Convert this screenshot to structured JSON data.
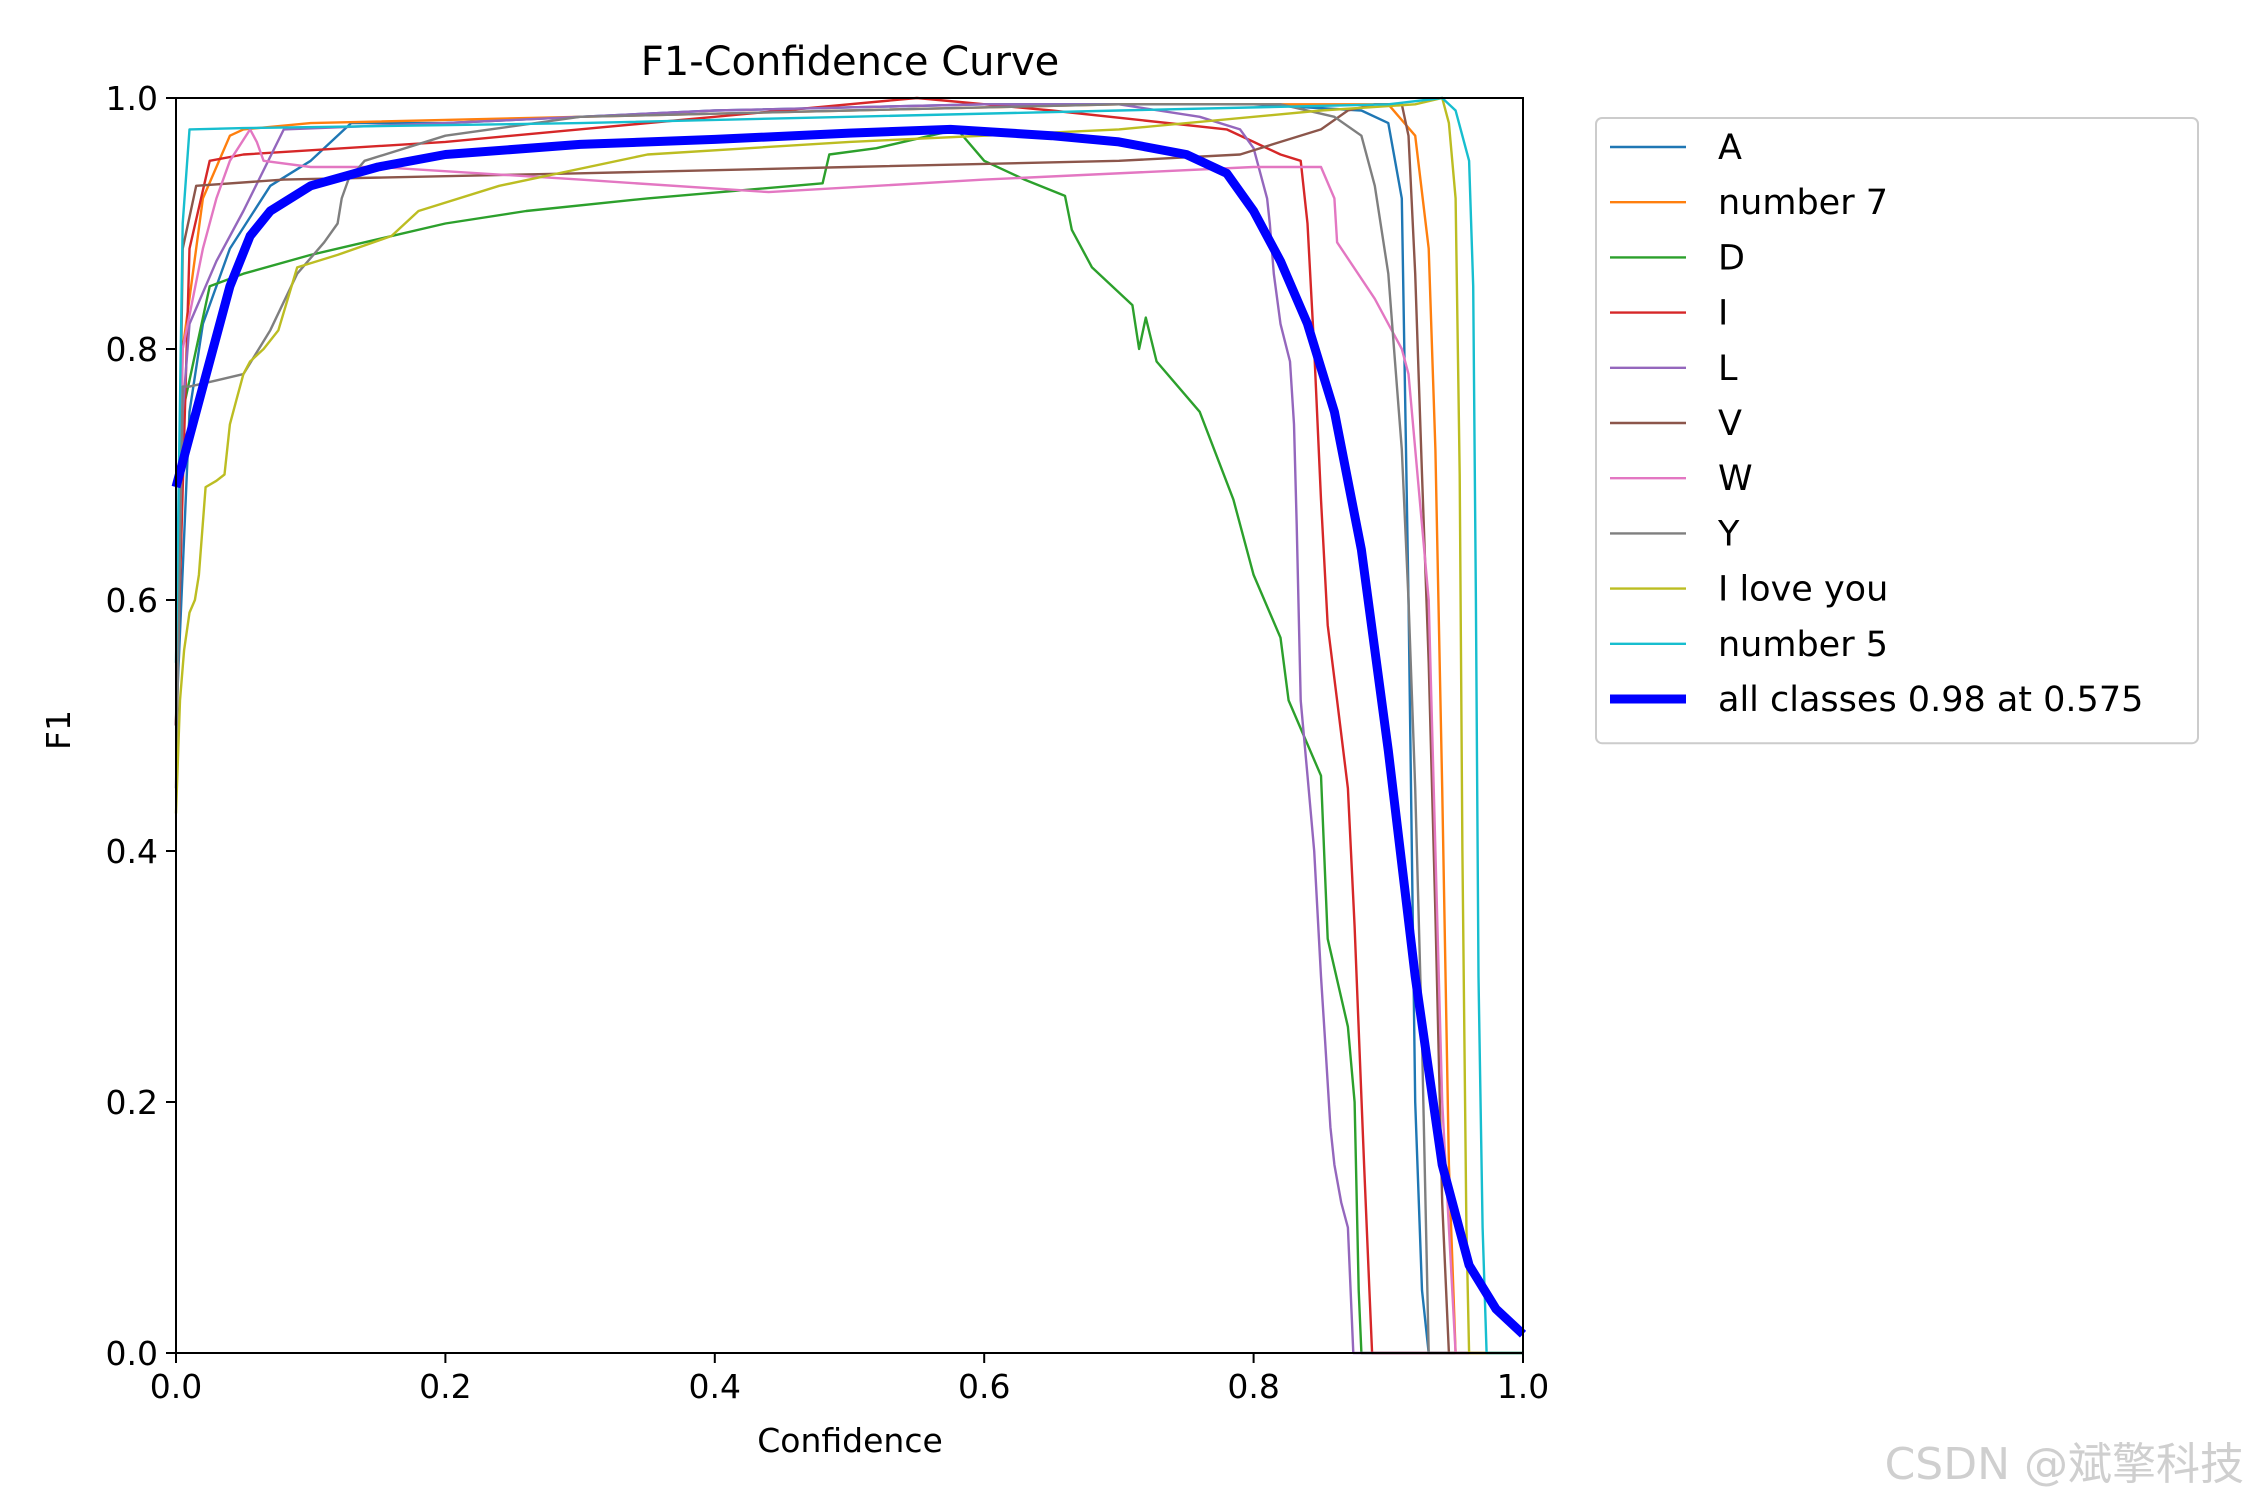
{
  "chart_data": {
    "type": "line",
    "title": "F1-Confidence Curve",
    "xlabel": "Confidence",
    "ylabel": "F1",
    "xlim": [
      0,
      1
    ],
    "ylim": [
      0,
      1
    ],
    "xticks": [
      "0.0",
      "0.2",
      "0.4",
      "0.6",
      "0.8",
      "1.0"
    ],
    "yticks": [
      "0.0",
      "0.2",
      "0.4",
      "0.6",
      "0.8",
      "1.0"
    ],
    "grid": false,
    "legend_position": "outside-right-top",
    "series": [
      {
        "name": "A",
        "color": "#1f77b4",
        "x": [
          0,
          0.01,
          0.02,
          0.04,
          0.07,
          0.1,
          0.13,
          0.2,
          0.4,
          0.6,
          0.8,
          0.88,
          0.9,
          0.91,
          0.915,
          0.92,
          0.925,
          0.93,
          1.0
        ],
        "y": [
          0.5,
          0.75,
          0.82,
          0.88,
          0.93,
          0.95,
          0.98,
          0.98,
          0.99,
          0.995,
          0.995,
          0.99,
          0.98,
          0.92,
          0.6,
          0.2,
          0.05,
          0,
          0
        ]
      },
      {
        "name": "number 7",
        "color": "#ff7f0e",
        "x": [
          0,
          0.005,
          0.02,
          0.04,
          0.05,
          0.1,
          0.3,
          0.5,
          0.7,
          0.9,
          0.92,
          0.93,
          0.935,
          0.94,
          0.945,
          0.95,
          1.0
        ],
        "y": [
          0.5,
          0.8,
          0.92,
          0.97,
          0.975,
          0.98,
          0.985,
          0.99,
          0.995,
          0.995,
          0.97,
          0.88,
          0.72,
          0.45,
          0.15,
          0,
          0
        ]
      },
      {
        "name": "D",
        "color": "#2ca02c",
        "x": [
          0,
          0.005,
          0.025,
          0.05,
          0.1,
          0.2,
          0.26,
          0.35,
          0.48,
          0.485,
          0.52,
          0.58,
          0.6,
          0.63,
          0.66,
          0.665,
          0.68,
          0.71,
          0.715,
          0.72,
          0.728,
          0.76,
          0.785,
          0.8,
          0.82,
          0.826,
          0.85,
          0.855,
          0.87,
          0.875,
          0.878,
          0.88,
          1.0
        ],
        "y": [
          0.5,
          0.75,
          0.85,
          0.86,
          0.875,
          0.9,
          0.91,
          0.92,
          0.932,
          0.955,
          0.96,
          0.975,
          0.95,
          0.935,
          0.922,
          0.895,
          0.865,
          0.835,
          0.8,
          0.825,
          0.79,
          0.75,
          0.68,
          0.62,
          0.57,
          0.52,
          0.46,
          0.33,
          0.26,
          0.2,
          0.05,
          0,
          0
        ]
      },
      {
        "name": "I",
        "color": "#d62728",
        "x": [
          0,
          0.01,
          0.025,
          0.05,
          0.2,
          0.4,
          0.55,
          0.65,
          0.78,
          0.8,
          0.82,
          0.835,
          0.84,
          0.845,
          0.85,
          0.855,
          0.862,
          0.87,
          0.875,
          0.882,
          0.886,
          0.888,
          1.0
        ],
        "y": [
          0.5,
          0.88,
          0.95,
          0.955,
          0.965,
          0.985,
          1.0,
          0.99,
          0.975,
          0.965,
          0.955,
          0.95,
          0.9,
          0.8,
          0.68,
          0.58,
          0.52,
          0.45,
          0.34,
          0.15,
          0.05,
          0,
          0
        ]
      },
      {
        "name": "L",
        "color": "#9467bd",
        "x": [
          0,
          0.005,
          0.01,
          0.03,
          0.05,
          0.08,
          0.2,
          0.4,
          0.6,
          0.7,
          0.76,
          0.79,
          0.8,
          0.81,
          0.812,
          0.815,
          0.82,
          0.827,
          0.83,
          0.832,
          0.835,
          0.84,
          0.845,
          0.85,
          0.853,
          0.857,
          0.86,
          0.865,
          0.87,
          0.872,
          0.874,
          1.0
        ],
        "y": [
          0.5,
          0.75,
          0.82,
          0.87,
          0.91,
          0.975,
          0.98,
          0.99,
          0.995,
          0.995,
          0.985,
          0.975,
          0.96,
          0.92,
          0.9,
          0.86,
          0.82,
          0.79,
          0.74,
          0.66,
          0.52,
          0.46,
          0.4,
          0.3,
          0.25,
          0.18,
          0.15,
          0.12,
          0.1,
          0.05,
          0,
          0
        ]
      },
      {
        "name": "V",
        "color": "#8c564b",
        "x": [
          0,
          0.005,
          0.015,
          0.08,
          0.3,
          0.5,
          0.7,
          0.79,
          0.82,
          0.85,
          0.87,
          0.89,
          0.91,
          0.915,
          0.92,
          0.925,
          0.93,
          0.935,
          0.94,
          0.945,
          1.0
        ],
        "y": [
          0.5,
          0.88,
          0.93,
          0.935,
          0.94,
          0.945,
          0.95,
          0.955,
          0.965,
          0.975,
          0.99,
          0.995,
          0.995,
          0.97,
          0.86,
          0.7,
          0.55,
          0.35,
          0.12,
          0,
          0
        ]
      },
      {
        "name": "W",
        "color": "#e377c2",
        "x": [
          0,
          0.005,
          0.02,
          0.03,
          0.04,
          0.055,
          0.06,
          0.065,
          0.1,
          0.15,
          0.3,
          0.44,
          0.6,
          0.8,
          0.85,
          0.86,
          0.862,
          0.89,
          0.9,
          0.91,
          0.915,
          0.93,
          0.935,
          0.94,
          0.95,
          1.0
        ],
        "y": [
          0.5,
          0.8,
          0.88,
          0.92,
          0.95,
          0.975,
          0.965,
          0.95,
          0.945,
          0.945,
          0.935,
          0.925,
          0.935,
          0.945,
          0.945,
          0.92,
          0.885,
          0.84,
          0.82,
          0.8,
          0.78,
          0.6,
          0.4,
          0.2,
          0,
          0
        ]
      },
      {
        "name": "Y",
        "color": "#7f7f7f",
        "x": [
          0,
          0.005,
          0.01,
          0.03,
          0.05,
          0.07,
          0.09,
          0.11,
          0.12,
          0.123,
          0.128,
          0.14,
          0.2,
          0.3,
          0.5,
          0.7,
          0.82,
          0.86,
          0.88,
          0.89,
          0.9,
          0.905,
          0.91,
          0.915,
          0.92,
          0.925,
          0.93,
          1.0
        ],
        "y": [
          0.45,
          0.77,
          0.77,
          0.775,
          0.78,
          0.815,
          0.86,
          0.885,
          0.9,
          0.92,
          0.935,
          0.95,
          0.97,
          0.985,
          0.99,
          0.995,
          0.995,
          0.985,
          0.97,
          0.93,
          0.86,
          0.79,
          0.72,
          0.6,
          0.45,
          0.25,
          0,
          0
        ]
      },
      {
        "name": "I love you",
        "color": "#bcbd22",
        "x": [
          0,
          0.003,
          0.006,
          0.01,
          0.014,
          0.017,
          0.022,
          0.03,
          0.036,
          0.04,
          0.045,
          0.05,
          0.055,
          0.065,
          0.076,
          0.09,
          0.12,
          0.16,
          0.18,
          0.24,
          0.35,
          0.5,
          0.7,
          0.85,
          0.92,
          0.94,
          0.945,
          0.95,
          0.953,
          0.955,
          0.958,
          0.96,
          1.0
        ],
        "y": [
          0.43,
          0.52,
          0.56,
          0.59,
          0.6,
          0.62,
          0.69,
          0.695,
          0.7,
          0.74,
          0.76,
          0.78,
          0.79,
          0.8,
          0.815,
          0.865,
          0.875,
          0.89,
          0.91,
          0.93,
          0.955,
          0.965,
          0.975,
          0.99,
          0.995,
          1.0,
          0.98,
          0.92,
          0.7,
          0.4,
          0.1,
          0,
          0
        ]
      },
      {
        "name": "number 5",
        "color": "#17becf",
        "x": [
          0,
          0.005,
          0.01,
          0.05,
          0.3,
          0.5,
          0.7,
          0.9,
          0.94,
          0.95,
          0.96,
          0.963,
          0.965,
          0.967,
          0.97,
          0.973,
          1.0
        ],
        "y": [
          0.55,
          0.9,
          0.975,
          0.976,
          0.98,
          0.985,
          0.99,
          0.995,
          1.0,
          0.99,
          0.95,
          0.85,
          0.6,
          0.3,
          0.1,
          0,
          0
        ]
      },
      {
        "name": "all classes 0.98 at 0.575",
        "color": "#0000ff",
        "bold": true,
        "x": [
          0,
          0.02,
          0.04,
          0.055,
          0.07,
          0.1,
          0.15,
          0.2,
          0.3,
          0.4,
          0.5,
          0.575,
          0.65,
          0.7,
          0.75,
          0.78,
          0.8,
          0.82,
          0.84,
          0.86,
          0.88,
          0.9,
          0.92,
          0.94,
          0.96,
          0.98,
          1.0
        ],
        "y": [
          0.69,
          0.77,
          0.85,
          0.89,
          0.91,
          0.93,
          0.945,
          0.955,
          0.963,
          0.967,
          0.972,
          0.975,
          0.97,
          0.965,
          0.955,
          0.94,
          0.91,
          0.87,
          0.82,
          0.75,
          0.64,
          0.48,
          0.3,
          0.15,
          0.07,
          0.035,
          0.015
        ]
      }
    ]
  },
  "watermark": "CSDN @斌擎科技"
}
